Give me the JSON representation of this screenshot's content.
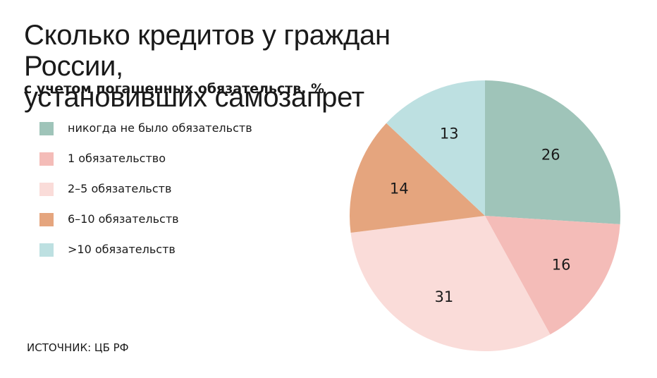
{
  "title_lines": [
    "Сколько кредитов у граждан России,",
    "установивших самозапрет"
  ],
  "subtitle": "с учетом погашенных обязательств, %",
  "source": "ИСТОЧНИК: ЦБ РФ",
  "chart_data": {
    "type": "pie",
    "categories": [
      "никогда не было обязательств",
      "1 обязательство",
      "2–5 обязательств",
      "6–10 обязательств",
      ">10 обязательств"
    ],
    "values": [
      26,
      16,
      31,
      14,
      13
    ],
    "labels": [
      "26",
      "16",
      "31",
      "14",
      "13"
    ],
    "colors": [
      "#9fc4b9",
      "#f4bcb8",
      "#fadcd9",
      "#e5a57e",
      "#bde0e1"
    ],
    "start": "12 o'clock",
    "direction": "clockwise",
    "legend_position": "left"
  }
}
